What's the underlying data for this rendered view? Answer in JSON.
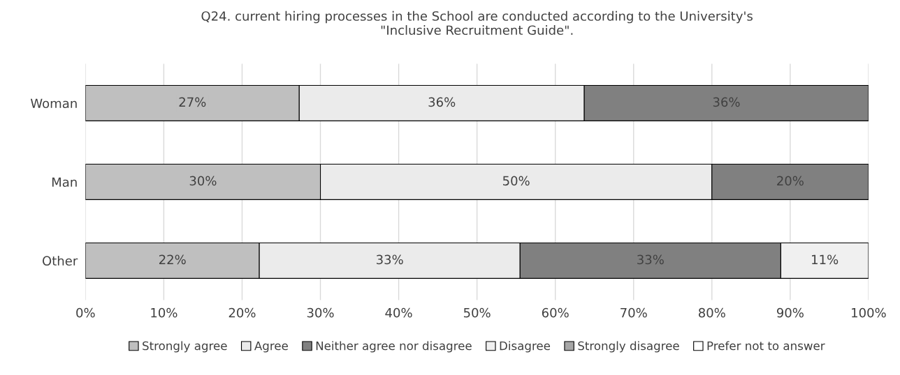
{
  "chart_data": {
    "type": "bar",
    "orientation": "horizontal",
    "stacked": true,
    "title": "Q24. current hiring processes in the School are conducted according to the University's\n\"Inclusive Recruitment Guide\".",
    "categories": [
      "Woman",
      "Man",
      "Other"
    ],
    "series": [
      {
        "name": "Strongly agree",
        "color": "#bfbfbf",
        "values": [
          27.3,
          30,
          22.2
        ],
        "value_labels": [
          "27%",
          "30%",
          "22%"
        ]
      },
      {
        "name": "Agree",
        "color": "#ebebeb",
        "values": [
          36.4,
          50,
          33.3
        ],
        "value_labels": [
          "36%",
          "50%",
          "33%"
        ]
      },
      {
        "name": "Neither agree nor disagree",
        "color": "#808080",
        "values": [
          36.3,
          20,
          33.3
        ],
        "value_labels": [
          "36%",
          "20%",
          "33%"
        ]
      },
      {
        "name": "Disagree",
        "color": "#f0f0f0",
        "values": [
          null,
          null,
          11.2
        ],
        "value_labels": [
          null,
          null,
          "11%"
        ]
      },
      {
        "name": "Strongly disagree",
        "color": "#a6a6a6",
        "values": [
          null,
          null,
          null
        ]
      },
      {
        "name": "Prefer not to answer",
        "color": "#ffffff",
        "values": [
          null,
          null,
          null
        ]
      }
    ],
    "xlim": [
      0,
      100
    ],
    "xticks": [
      {
        "value": 0,
        "label": "0%"
      },
      {
        "value": 10,
        "label": "10%"
      },
      {
        "value": 20,
        "label": "20%"
      },
      {
        "value": 30,
        "label": "30%"
      },
      {
        "value": 40,
        "label": "40%"
      },
      {
        "value": 50,
        "label": "50%"
      },
      {
        "value": 60,
        "label": "60%"
      },
      {
        "value": 70,
        "label": "70%"
      },
      {
        "value": 80,
        "label": "80%"
      },
      {
        "value": 90,
        "label": "90%"
      },
      {
        "value": 100,
        "label": "100%"
      }
    ],
    "grid": "x",
    "legend": "bottom"
  }
}
